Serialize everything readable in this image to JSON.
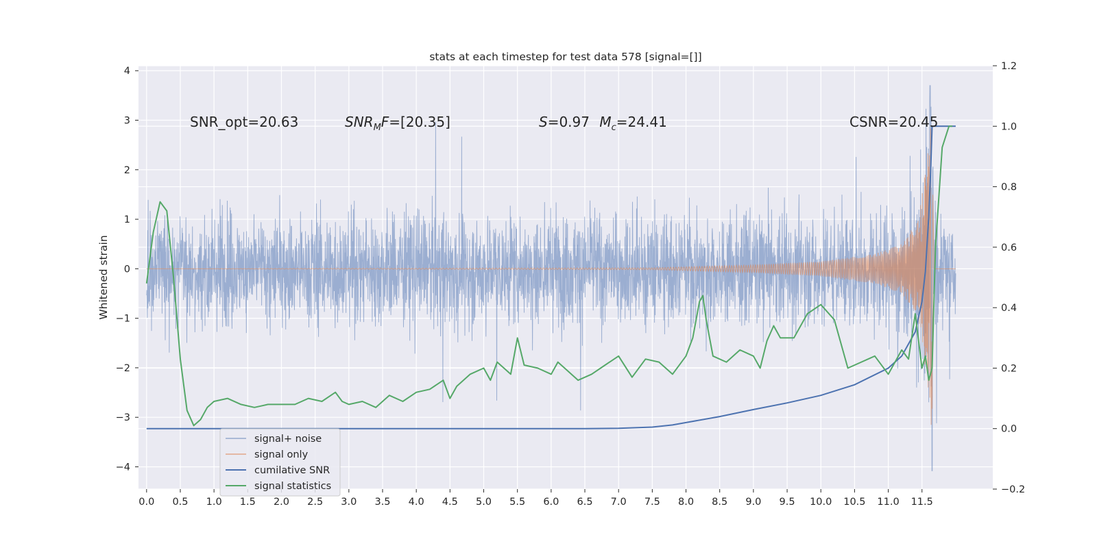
{
  "chart_data": {
    "type": "line",
    "title": "stats at each timestep for test data 578 [signal=[]]",
    "ylabel": "Whitened strain",
    "ylabel_right": "",
    "xlabel": "",
    "xlim": [
      -0.12,
      12.55
    ],
    "ylim": [
      -4.45,
      4.1
    ],
    "ylim_right": [
      -0.2,
      1.2
    ],
    "x_ticks": [
      "0.0",
      "0.5",
      "1.0",
      "1.5",
      "2.0",
      "2.5",
      "3.0",
      "3.5",
      "4.0",
      "4.5",
      "5.0",
      "5.5",
      "6.0",
      "6.5",
      "7.0",
      "7.5",
      "8.0",
      "8.5",
      "9.0",
      "9.5",
      "10.0",
      "10.5",
      "11.0",
      "11.5"
    ],
    "y_ticks": [
      "4",
      "3",
      "2",
      "1",
      "0",
      "−1",
      "−2",
      "−3",
      "−4"
    ],
    "y_ticks_right": [
      "1.2",
      "1.0",
      "0.8",
      "0.6",
      "0.4",
      "0.2",
      "0.0",
      "−0.2"
    ],
    "annotations": [
      {
        "text": "SNR_opt=20.63",
        "x": 0.2,
        "y": 3.0
      },
      {
        "text": "SNRₘF=[20.35]",
        "x": 2.6,
        "y": 3.0
      },
      {
        "text": "S=0.97   Mᴄ=24.41",
        "x": 5.6,
        "y": 3.0
      },
      {
        "text": "CSNR=20.45",
        "x": 10.4,
        "y": 3.0
      }
    ],
    "legend_location": "lower left",
    "series": [
      {
        "name": "signal+ noise",
        "axis": "left",
        "color": "#4c72b0",
        "note": "dense whitened noise, approx std 0.75, range -4.1 to 3.7, 0 to 12 s",
        "amplitude_envelope": {
          "x": [
            0,
            11.3,
            11.5,
            11.62,
            11.65,
            11.67,
            12.0
          ],
          "y": [
            0.85,
            0.9,
            1.1,
            3.7,
            -4.1,
            1.3,
            1.3
          ]
        }
      },
      {
        "name": "signal only",
        "axis": "left",
        "color": "#dd8452",
        "note": "chirp waveform, growing amplitude, peak near t=11.65",
        "amplitude_envelope": {
          "x": [
            0,
            7.5,
            9.0,
            10.0,
            10.8,
            11.2,
            11.45,
            11.6,
            11.65,
            11.68
          ],
          "y": [
            0.0,
            0.02,
            0.08,
            0.15,
            0.3,
            0.5,
            1.0,
            2.5,
            3.4,
            0.0
          ]
        }
      },
      {
        "name": "cumilative SNR",
        "axis": "right",
        "color": "#4c72b0",
        "x": [
          0,
          6.5,
          7.0,
          7.5,
          7.8,
          8.0,
          8.5,
          9.0,
          9.5,
          10.0,
          10.5,
          11.0,
          11.2,
          11.4,
          11.5,
          11.55,
          11.6,
          11.63,
          11.65,
          11.7,
          12.0
        ],
        "y": [
          0.0,
          0.0,
          0.001,
          0.005,
          0.012,
          0.02,
          0.04,
          0.063,
          0.085,
          0.11,
          0.145,
          0.2,
          0.24,
          0.32,
          0.42,
          0.52,
          0.7,
          0.86,
          1.0,
          1.0,
          1.0
        ]
      },
      {
        "name": "signal statistics",
        "axis": "right",
        "color": "#55a868",
        "x": [
          0.0,
          0.1,
          0.2,
          0.3,
          0.4,
          0.5,
          0.6,
          0.7,
          0.8,
          0.9,
          1.0,
          1.2,
          1.4,
          1.6,
          1.8,
          2.0,
          2.2,
          2.4,
          2.6,
          2.8,
          2.9,
          3.0,
          3.2,
          3.4,
          3.6,
          3.8,
          4.0,
          4.2,
          4.4,
          4.5,
          4.6,
          4.8,
          5.0,
          5.1,
          5.2,
          5.4,
          5.5,
          5.6,
          5.8,
          6.0,
          6.1,
          6.2,
          6.4,
          6.6,
          6.8,
          7.0,
          7.2,
          7.4,
          7.6,
          7.8,
          8.0,
          8.1,
          8.2,
          8.25,
          8.3,
          8.4,
          8.6,
          8.8,
          9.0,
          9.1,
          9.2,
          9.3,
          9.4,
          9.6,
          9.8,
          10.0,
          10.2,
          10.4,
          10.6,
          10.8,
          11.0,
          11.2,
          11.3,
          11.4,
          11.5,
          11.55,
          11.6,
          11.65,
          11.7,
          11.8,
          11.9,
          11.95
        ],
        "y": [
          0.48,
          0.65,
          0.75,
          0.72,
          0.5,
          0.23,
          0.06,
          0.01,
          0.03,
          0.07,
          0.09,
          0.1,
          0.08,
          0.07,
          0.08,
          0.08,
          0.08,
          0.1,
          0.09,
          0.12,
          0.09,
          0.08,
          0.09,
          0.07,
          0.11,
          0.09,
          0.12,
          0.13,
          0.16,
          0.1,
          0.14,
          0.18,
          0.2,
          0.16,
          0.22,
          0.18,
          0.3,
          0.21,
          0.2,
          0.18,
          0.22,
          0.2,
          0.16,
          0.18,
          0.21,
          0.24,
          0.17,
          0.23,
          0.22,
          0.18,
          0.24,
          0.3,
          0.42,
          0.44,
          0.36,
          0.24,
          0.22,
          0.26,
          0.24,
          0.2,
          0.29,
          0.34,
          0.3,
          0.3,
          0.38,
          0.41,
          0.36,
          0.2,
          0.22,
          0.24,
          0.18,
          0.26,
          0.23,
          0.38,
          0.2,
          0.24,
          0.16,
          0.2,
          0.6,
          0.93,
          1.0,
          1.0
        ]
      }
    ]
  }
}
